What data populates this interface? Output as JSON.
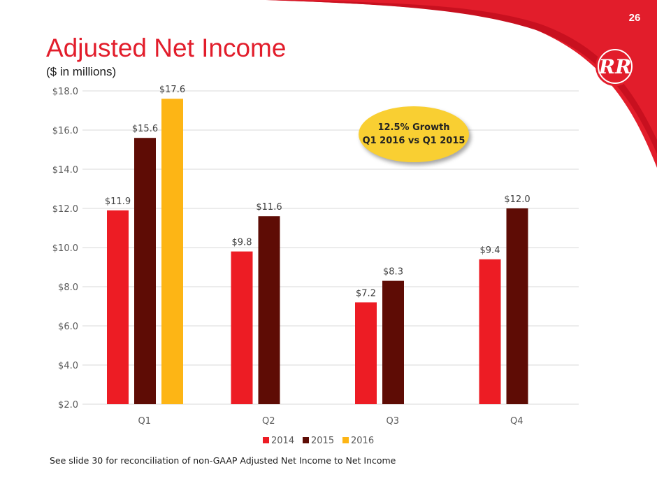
{
  "slide": {
    "title": "Adjusted Net Income",
    "subtitle": "($ in millions)",
    "number": "26",
    "footnote": "See slide 30 for reconciliation of non-GAAP Adjusted Net Income to Net Income",
    "logo_text": "RR"
  },
  "callout": {
    "line1": "12.5% Growth",
    "line2": "Q1 2016 vs Q1 2015"
  },
  "colors": {
    "brand_red": "#e21d2b",
    "s2014": "#ed1c24",
    "s2015": "#5e0c05",
    "s2016": "#fdb515",
    "callout": "#f9cf32"
  },
  "chart_data": {
    "type": "bar",
    "categories": [
      "Q1",
      "Q2",
      "Q3",
      "Q4"
    ],
    "series": [
      {
        "name": "2014",
        "values": [
          11.9,
          9.8,
          7.2,
          9.4
        ],
        "labels": [
          "$11.9",
          "$9.8",
          "$7.2",
          "$9.4"
        ]
      },
      {
        "name": "2015",
        "values": [
          15.6,
          11.6,
          8.3,
          12.0
        ],
        "labels": [
          "$15.6",
          "$11.6",
          "$8.3",
          "$12.0"
        ]
      },
      {
        "name": "2016",
        "values": [
          17.6,
          null,
          null,
          null
        ],
        "labels": [
          "$17.6",
          null,
          null,
          null
        ]
      }
    ],
    "ylim": [
      2,
      18
    ],
    "yticks": [
      2,
      4,
      6,
      8,
      10,
      12,
      14,
      16,
      18
    ],
    "ytick_labels": [
      "$2.0",
      "$4.0",
      "$6.0",
      "$8.0",
      "$10.0",
      "$12.0",
      "$14.0",
      "$16.0",
      "$18.0"
    ],
    "grid": true,
    "legend_position": "bottom"
  }
}
